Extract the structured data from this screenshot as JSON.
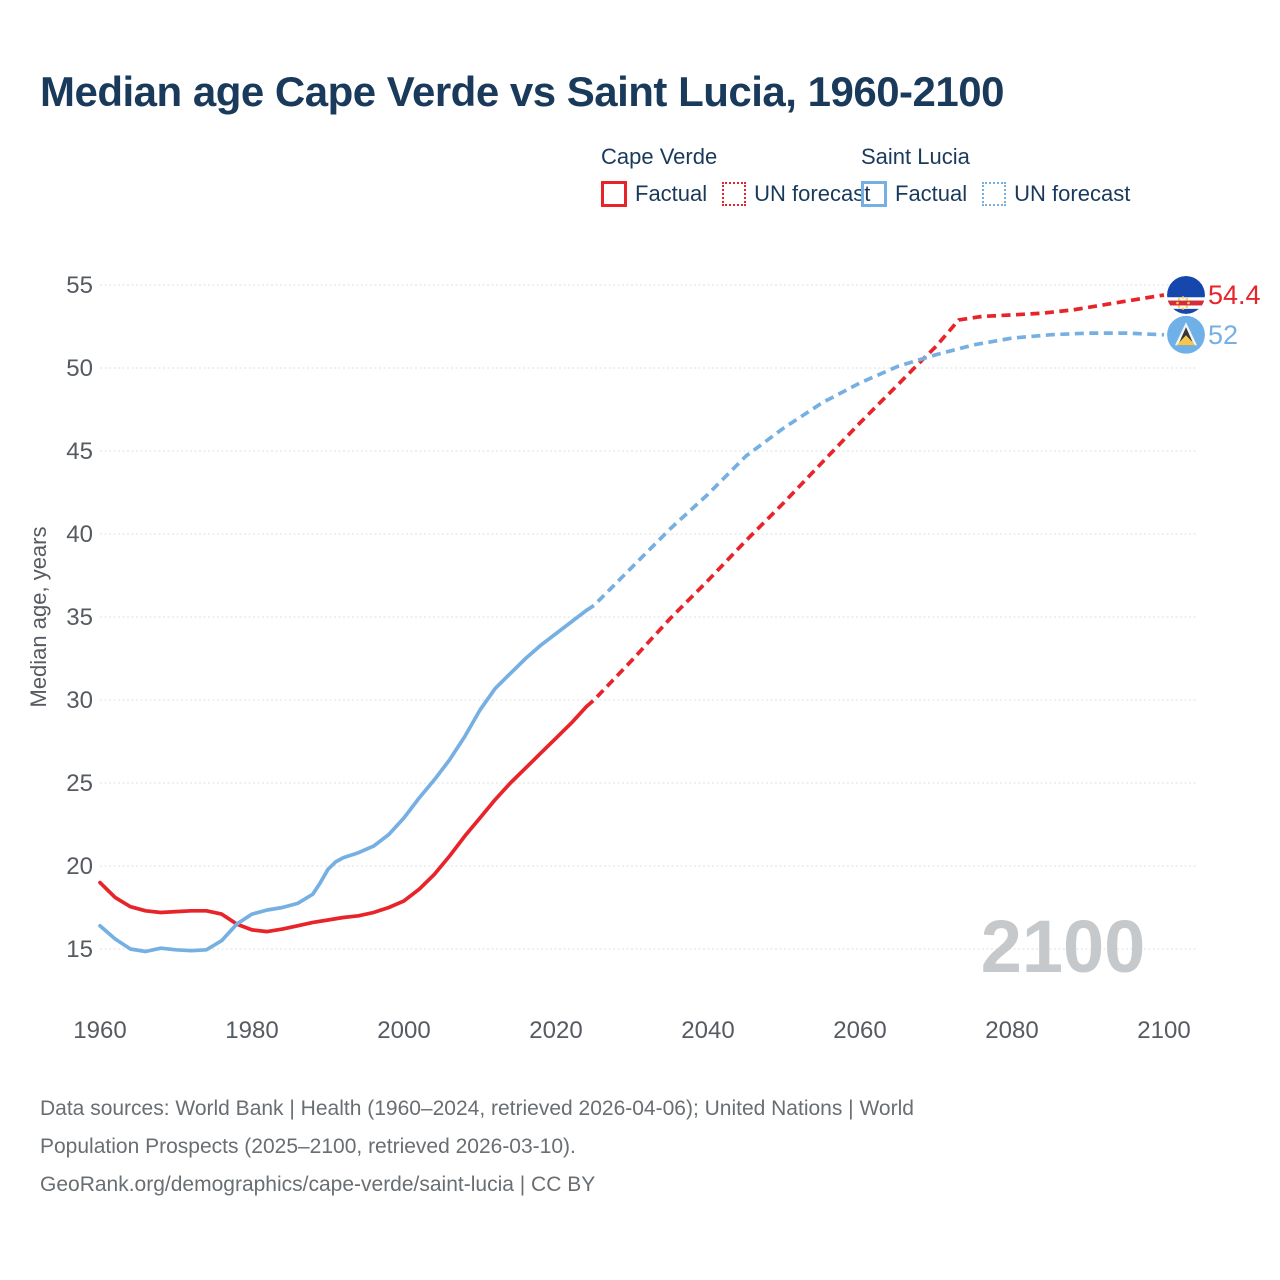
{
  "title": "Median age Cape Verde vs Saint Lucia, 1960-2100",
  "legend": {
    "groups": [
      {
        "name": "Cape Verde",
        "items": [
          {
            "label": "Factual",
            "style": "solid"
          },
          {
            "label": "UN forecast",
            "style": "dotted"
          }
        ]
      },
      {
        "name": "Saint Lucia",
        "items": [
          {
            "label": "Factual",
            "style": "solid"
          },
          {
            "label": "UN forecast",
            "style": "dotted"
          }
        ]
      }
    ]
  },
  "watermark": "2100",
  "footer": {
    "line1": "Data sources: World Bank | Health (1960–2024, retrieved 2026-04-06); United Nations | World",
    "line2": "Population Prospects (2025–2100, retrieved 2026-03-10).",
    "line3": "GeoRank.org/demographics/cape-verde/saint-lucia | CC BY"
  },
  "colors": {
    "cape_verde": "#e8242b",
    "saint_lucia": "#76b0e3",
    "grid": "#e4e6e8",
    "tick_text": "#555b61",
    "watermark": "#c6c9cb"
  },
  "chart_data": {
    "type": "line",
    "title": "Median age Cape Verde vs Saint Lucia, 1960-2100",
    "xlabel": "",
    "ylabel": "Median age, years",
    "xlim": [
      1960,
      2100
    ],
    "ylim": [
      13.5,
      56
    ],
    "x_ticks": [
      1960,
      1980,
      2000,
      2020,
      2040,
      2060,
      2080,
      2100
    ],
    "y_ticks": [
      15,
      20,
      25,
      30,
      35,
      40,
      45,
      50,
      55
    ],
    "grid": true,
    "legend_position": "top-right",
    "series": [
      {
        "name": "Cape Verde — Factual",
        "color": "#e8242b",
        "dash": "solid",
        "points": [
          [
            1960,
            19.0
          ],
          [
            1962,
            18.1
          ],
          [
            1964,
            17.55
          ],
          [
            1966,
            17.3
          ],
          [
            1968,
            17.2
          ],
          [
            1970,
            17.25
          ],
          [
            1972,
            17.3
          ],
          [
            1974,
            17.3
          ],
          [
            1976,
            17.1
          ],
          [
            1978,
            16.5
          ],
          [
            1980,
            16.15
          ],
          [
            1982,
            16.05
          ],
          [
            1984,
            16.2
          ],
          [
            1986,
            16.4
          ],
          [
            1988,
            16.6
          ],
          [
            1990,
            16.75
          ],
          [
            1992,
            16.9
          ],
          [
            1994,
            17.0
          ],
          [
            1996,
            17.2
          ],
          [
            1998,
            17.5
          ],
          [
            2000,
            17.9
          ],
          [
            2002,
            18.6
          ],
          [
            2004,
            19.5
          ],
          [
            2006,
            20.6
          ],
          [
            2008,
            21.8
          ],
          [
            2010,
            22.9
          ],
          [
            2012,
            24.0
          ],
          [
            2014,
            25.0
          ],
          [
            2016,
            25.9
          ],
          [
            2018,
            26.8
          ],
          [
            2020,
            27.7
          ],
          [
            2022,
            28.6
          ],
          [
            2024,
            29.6
          ]
        ]
      },
      {
        "name": "Cape Verde — UN forecast",
        "color": "#e8242b",
        "dash": "dashed",
        "points": [
          [
            2024,
            29.6
          ],
          [
            2025,
            30.0
          ],
          [
            2030,
            32.4
          ],
          [
            2035,
            34.9
          ],
          [
            2040,
            37.2
          ],
          [
            2045,
            39.6
          ],
          [
            2050,
            41.9
          ],
          [
            2055,
            44.3
          ],
          [
            2060,
            46.7
          ],
          [
            2065,
            49.0
          ],
          [
            2068,
            50.4
          ],
          [
            2070,
            51.3
          ],
          [
            2073,
            52.9
          ],
          [
            2076,
            53.1
          ],
          [
            2080,
            53.2
          ],
          [
            2084,
            53.3
          ],
          [
            2088,
            53.5
          ],
          [
            2092,
            53.8
          ],
          [
            2096,
            54.1
          ],
          [
            2100,
            54.4
          ]
        ]
      },
      {
        "name": "Saint Lucia — Factual",
        "color": "#76b0e3",
        "dash": "solid",
        "points": [
          [
            1960,
            16.4
          ],
          [
            1962,
            15.6
          ],
          [
            1964,
            15.0
          ],
          [
            1966,
            14.85
          ],
          [
            1968,
            15.05
          ],
          [
            1970,
            14.95
          ],
          [
            1972,
            14.9
          ],
          [
            1974,
            14.95
          ],
          [
            1976,
            15.5
          ],
          [
            1978,
            16.5
          ],
          [
            1980,
            17.1
          ],
          [
            1982,
            17.35
          ],
          [
            1984,
            17.5
          ],
          [
            1986,
            17.75
          ],
          [
            1988,
            18.3
          ],
          [
            1989,
            19.0
          ],
          [
            1990,
            19.8
          ],
          [
            1991,
            20.25
          ],
          [
            1992,
            20.5
          ],
          [
            1994,
            20.8
          ],
          [
            1996,
            21.2
          ],
          [
            1998,
            21.9
          ],
          [
            2000,
            22.9
          ],
          [
            2002,
            24.1
          ],
          [
            2004,
            25.2
          ],
          [
            2006,
            26.4
          ],
          [
            2008,
            27.8
          ],
          [
            2010,
            29.4
          ],
          [
            2012,
            30.7
          ],
          [
            2014,
            31.6
          ],
          [
            2016,
            32.5
          ],
          [
            2018,
            33.3
          ],
          [
            2020,
            34.0
          ],
          [
            2022,
            34.7
          ],
          [
            2024,
            35.4
          ]
        ]
      },
      {
        "name": "Saint Lucia — UN forecast",
        "color": "#76b0e3",
        "dash": "dashed",
        "points": [
          [
            2024,
            35.4
          ],
          [
            2025,
            35.7
          ],
          [
            2030,
            38.0
          ],
          [
            2035,
            40.3
          ],
          [
            2040,
            42.4
          ],
          [
            2045,
            44.7
          ],
          [
            2050,
            46.4
          ],
          [
            2055,
            47.9
          ],
          [
            2060,
            49.1
          ],
          [
            2065,
            50.1
          ],
          [
            2070,
            50.8
          ],
          [
            2075,
            51.4
          ],
          [
            2080,
            51.8
          ],
          [
            2085,
            52.0
          ],
          [
            2090,
            52.1
          ],
          [
            2095,
            52.1
          ],
          [
            2100,
            52.0
          ]
        ]
      }
    ],
    "end_labels": [
      {
        "series": "Cape Verde",
        "text": "54.4",
        "value": 54.4,
        "color": "#e8242b",
        "flag": "cape-verde-flag-icon"
      },
      {
        "series": "Saint Lucia",
        "text": "52",
        "value": 52,
        "color": "#76b0e3",
        "flag": "saint-lucia-flag-icon"
      }
    ]
  }
}
